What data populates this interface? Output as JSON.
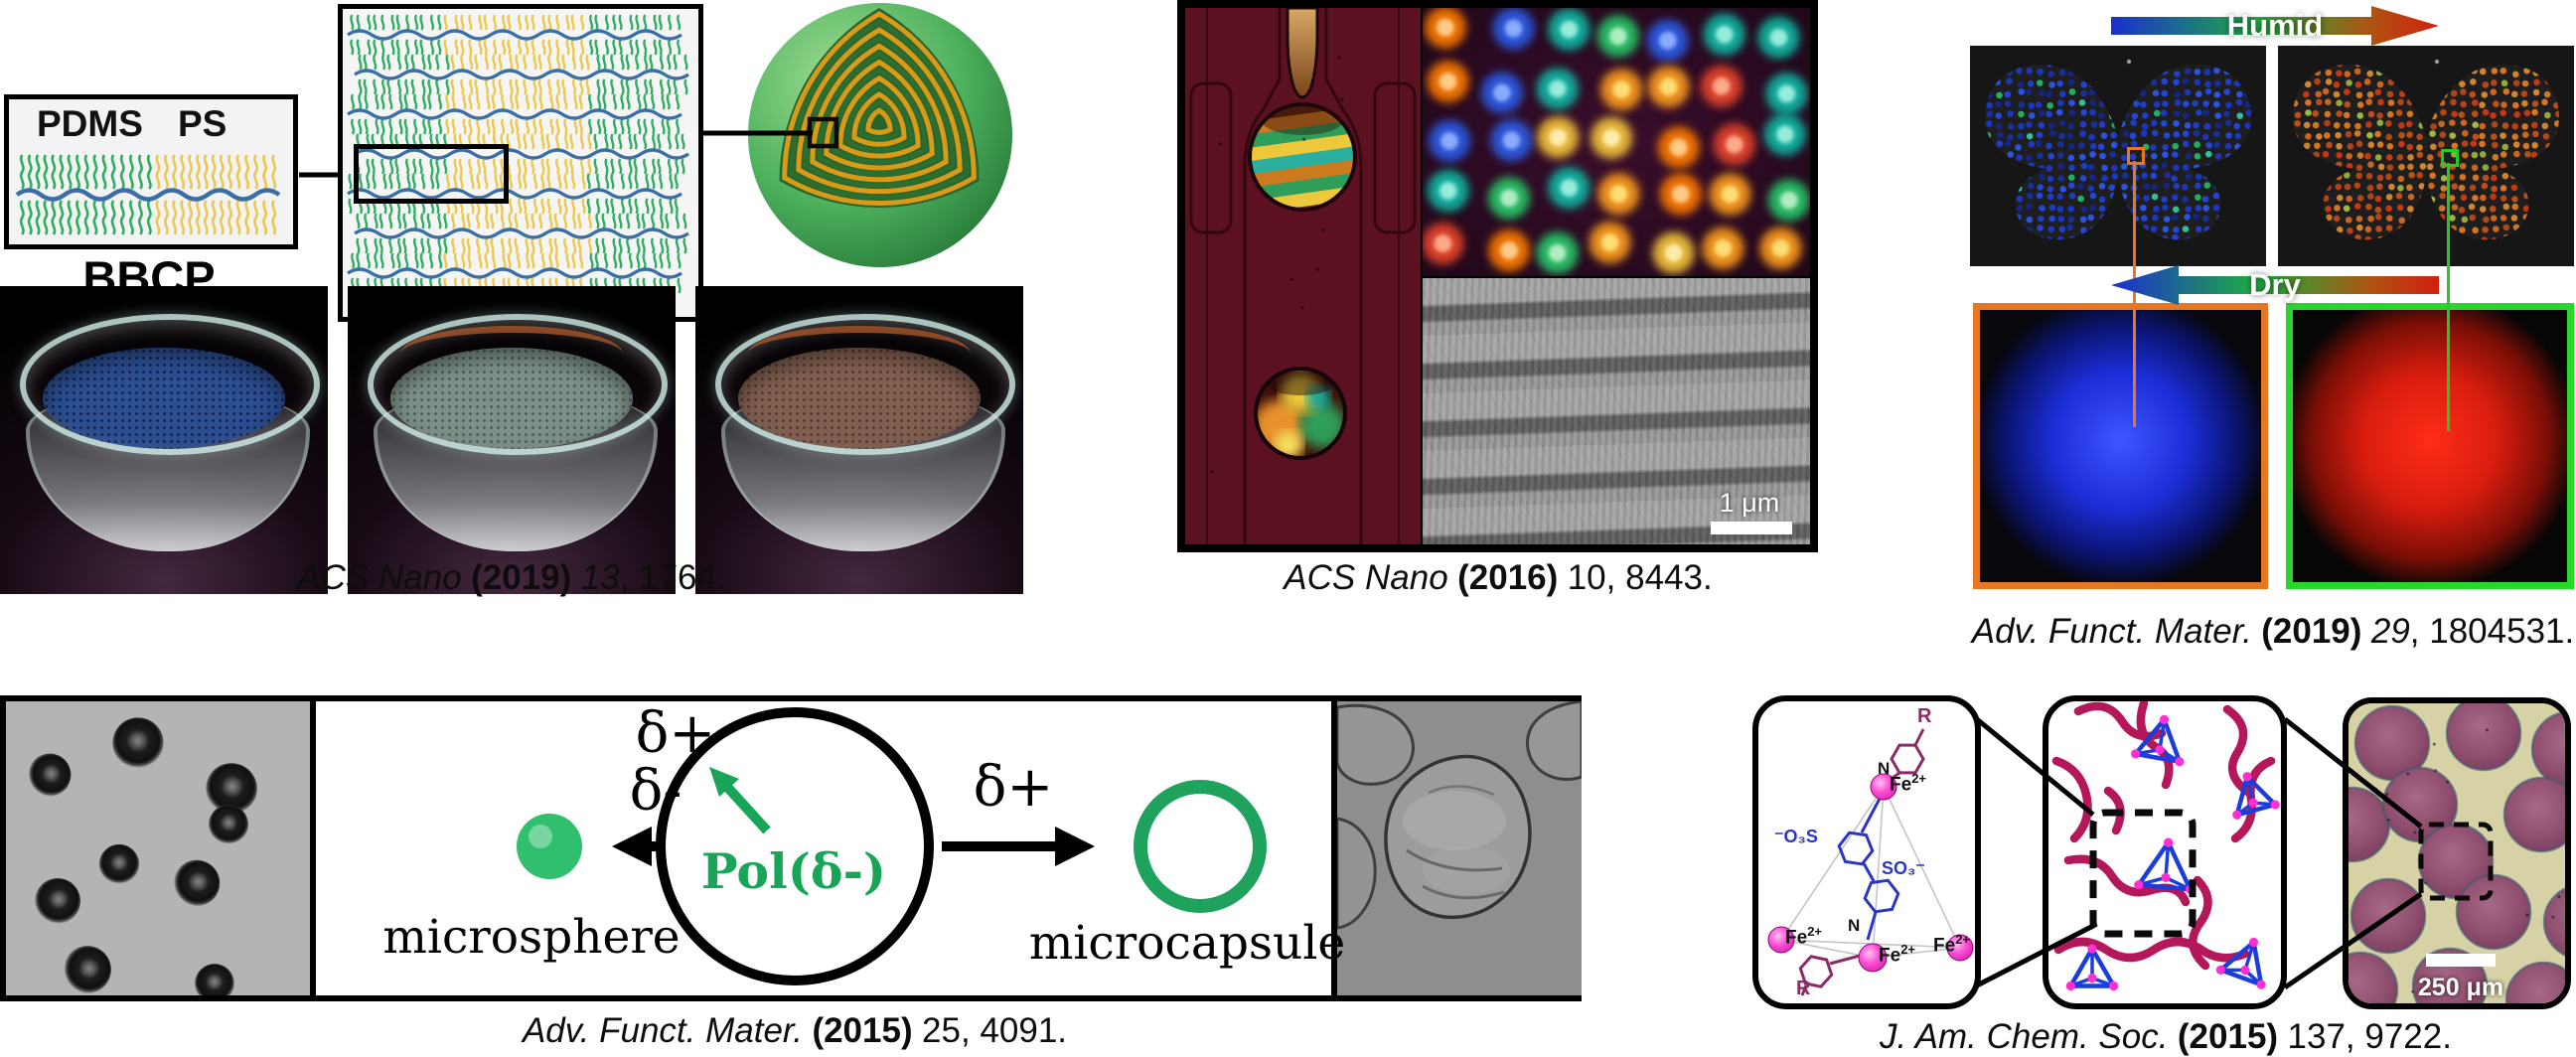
{
  "bbcp_panel": {
    "pdms": "PDMS",
    "ps": "PS",
    "bbcp": "BBCP"
  },
  "humidity_panel": {
    "humid": "Humid",
    "dry": "Dry"
  },
  "capsule_panel": {
    "delta_minus": "δ-",
    "delta_plus": "δ+",
    "pol": "Pol(δ-)",
    "microsphere": "microsphere",
    "microcapsule": "microcapsule"
  },
  "cage_panel": {
    "fe": "Fe",
    "fe_charge": "2+",
    "so3_left": "⁻O₃S",
    "so3_right": "SO₃⁻",
    "r_group": "R",
    "n_atom": "N"
  },
  "scale_bars": {
    "sem": "1 μm",
    "microgel": "250 μm"
  },
  "citations": [
    {
      "journal": "ACS Nano",
      "year": "(2019)",
      "volume": "13",
      "rest": ", 1764."
    },
    {
      "journal": "ACS Nano",
      "year": "(2016)",
      "volume": "10",
      "rest": ", 8443."
    },
    {
      "journal": "Adv. Funct. Mater.",
      "year": "(2019)",
      "volume": "29",
      "rest": ", 1804531."
    },
    {
      "journal": "Adv. Funct. Mater.",
      "year": "(2015)",
      "volume": "25",
      "rest": ", 4091."
    },
    {
      "journal": "J. Am. Chem. Soc.",
      "year": "(2015)",
      "volume": "137",
      "rest": ", 9722."
    }
  ],
  "colors": {
    "brush_green": "#2fae62",
    "brush_yellow": "#eec84a",
    "backbone_blue": "#3a6ea5",
    "ring_orange": "#d99a18",
    "ring_green": "#2c6e2f",
    "accent_green": "#18a558",
    "chain_magenta": "#b5185a",
    "tetrahedron_blue": "#1b3ddb",
    "fe_pink": "#e935c1",
    "orange_border": "#e87722",
    "green_border": "#28d828",
    "humid_blue": "#1b2fd0",
    "humid_green": "#1fae3f",
    "humid_red": "#d01f10"
  }
}
